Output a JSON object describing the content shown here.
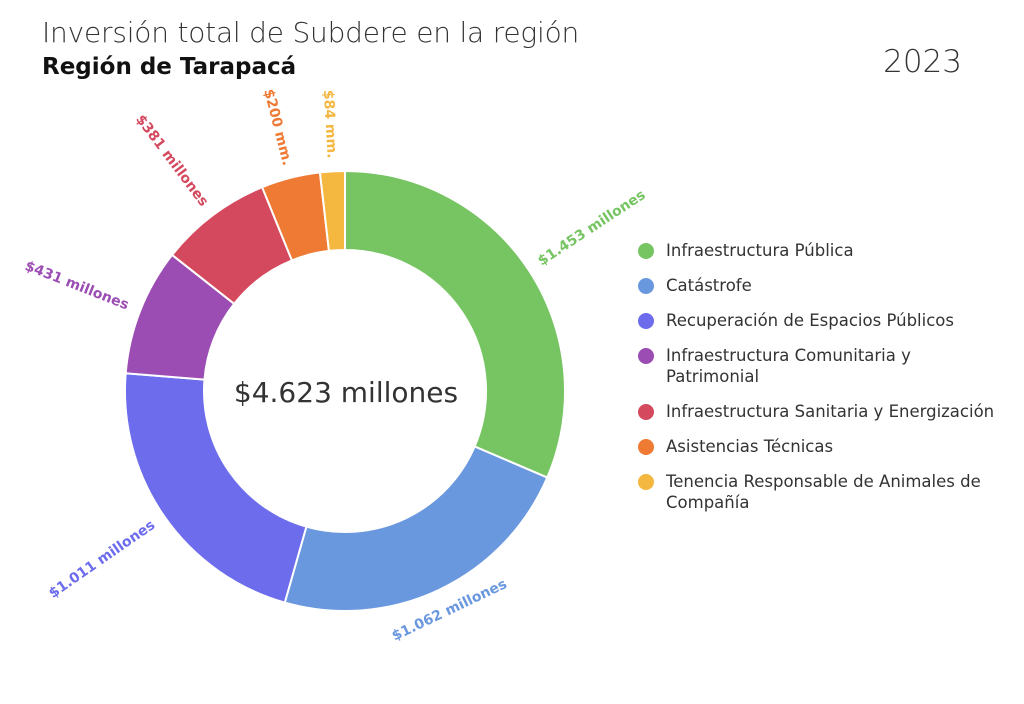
{
  "header": {
    "title": "Inversión total de Subdere en la región",
    "subtitle": "Región de Tarapacá",
    "year": "2023"
  },
  "chart_data": {
    "type": "pie",
    "variant": "donut",
    "title": "Inversión total de Subdere en la región",
    "subtitle": "Región de Tarapacá",
    "center_label": "$4.623 millones",
    "total": 4623,
    "legend_position": "right",
    "slices": [
      {
        "name": "Infraestructura Pública",
        "value": 1453,
        "label": "$1.453 millones",
        "color": "#77c463"
      },
      {
        "name": "Catástrofe",
        "value": 1062,
        "label": "$1.062 millones",
        "color": "#6a98de"
      },
      {
        "name": "Recuperación de Espacios Públicos",
        "value": 1011,
        "label": "$1.011 millones",
        "color": "#6c6ced"
      },
      {
        "name": "Infraestructura Comunitaria y Patrimonial",
        "value": 431,
        "label": "$431 millones",
        "color": "#9b4db3"
      },
      {
        "name": "Infraestructura Sanitaria y Energización",
        "value": 381,
        "label": "$381 millones",
        "color": "#d4495e"
      },
      {
        "name": "Asistencias Técnicas",
        "value": 200,
        "label": "$200 mm.",
        "color": "#ee7a33"
      },
      {
        "name": "Tenencia Responsable de Animales de Compañía",
        "value": 84,
        "label": "$84 mm.",
        "color": "#f4b740"
      }
    ]
  }
}
